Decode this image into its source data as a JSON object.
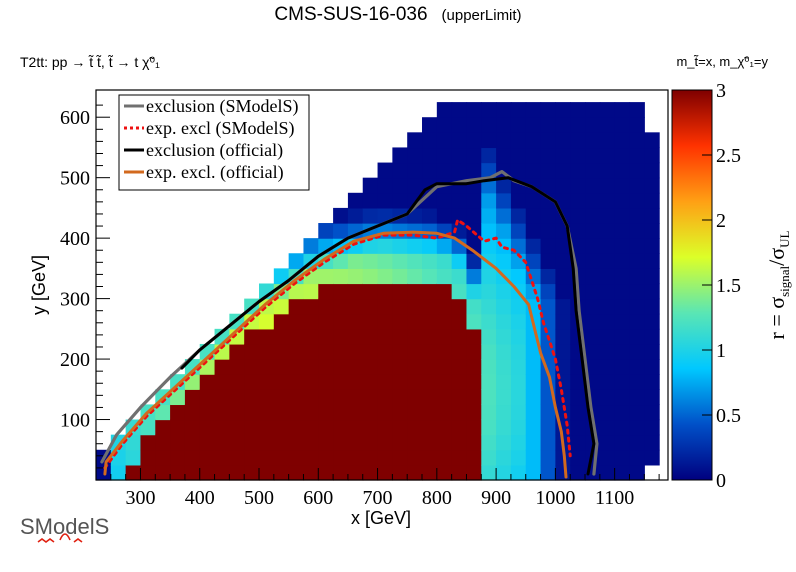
{
  "header": {
    "title": "CMS-SUS-16-036",
    "subtitle": "(upperLimit)",
    "process_label": "T2tt: pp → t̃ t̃, t̃ → t χ̃⁰₁",
    "axes_note": "m_t̃=x, m_χ̃⁰₁=y"
  },
  "logo": {
    "text": "SModelS"
  },
  "chart_data": {
    "type": "heatmap",
    "title": "CMS-SUS-16-036 (upperLimit)",
    "xlabel": "x [GeV]",
    "ylabel": "y [GeV]",
    "zlabel": "r = σsignal/σUL",
    "xlim": [
      225,
      1190
    ],
    "ylim": [
      0,
      645
    ],
    "zlim": [
      0,
      3
    ],
    "x_ticks": [
      300,
      400,
      500,
      600,
      700,
      800,
      900,
      1000,
      1100
    ],
    "y_ticks": [
      100,
      200,
      300,
      400,
      500,
      600
    ],
    "z_ticks": [
      0,
      0.5,
      1,
      1.5,
      2,
      2.5,
      3
    ],
    "z_tick_labels": [
      "0",
      "0.5",
      "1",
      "1.5",
      "2",
      "2.5",
      "3"
    ],
    "bin_width_x": 25,
    "bin_width_y": 25,
    "grid": false,
    "colormap": [
      "#00007f",
      "#0050c8",
      "#00c8ff",
      "#5ae6b4",
      "#dcff28",
      "#ffa014",
      "#ff3200",
      "#7f0000"
    ],
    "legend": {
      "placement": "top-left",
      "entries": [
        {
          "label": "exclusion (SModelS)",
          "color": "#707070",
          "style": "solid"
        },
        {
          "label": "exp. excl (SModelS)",
          "color": "#ee1111",
          "style": "dotted"
        },
        {
          "label": "exclusion (official)",
          "color": "#000000",
          "style": "solid"
        },
        {
          "label": "exp. excl. (official)",
          "color": "#d2691e",
          "style": "solid"
        }
      ]
    },
    "series": [
      {
        "name": "exclusion (SModelS)",
        "points": [
          [
            235,
            30
          ],
          [
            260,
            75
          ],
          [
            300,
            120
          ],
          [
            350,
            170
          ],
          [
            400,
            215
          ],
          [
            450,
            255
          ],
          [
            500,
            295
          ],
          [
            550,
            330
          ],
          [
            600,
            370
          ],
          [
            650,
            400
          ],
          [
            700,
            420
          ],
          [
            750,
            440
          ],
          [
            800,
            485
          ],
          [
            850,
            495
          ],
          [
            890,
            500
          ],
          [
            910,
            510
          ],
          [
            930,
            495
          ],
          [
            960,
            485
          ],
          [
            1000,
            460
          ],
          [
            1020,
            420
          ],
          [
            1035,
            350
          ],
          [
            1040,
            280
          ],
          [
            1050,
            200
          ],
          [
            1060,
            120
          ],
          [
            1070,
            60
          ],
          [
            1065,
            10
          ]
        ]
      },
      {
        "name": "exp. excl (SModelS)",
        "points": [
          [
            240,
            20
          ],
          [
            270,
            60
          ],
          [
            310,
            105
          ],
          [
            360,
            150
          ],
          [
            410,
            195
          ],
          [
            460,
            240
          ],
          [
            510,
            285
          ],
          [
            560,
            325
          ],
          [
            610,
            360
          ],
          [
            660,
            390
          ],
          [
            710,
            405
          ],
          [
            760,
            405
          ],
          [
            800,
            400
          ],
          [
            830,
            410
          ],
          [
            835,
            430
          ],
          [
            850,
            420
          ],
          [
            880,
            395
          ],
          [
            900,
            400
          ],
          [
            910,
            385
          ],
          [
            930,
            380
          ],
          [
            950,
            360
          ],
          [
            960,
            330
          ],
          [
            970,
            300
          ],
          [
            980,
            260
          ],
          [
            990,
            230
          ],
          [
            1000,
            200
          ],
          [
            1010,
            150
          ],
          [
            1020,
            90
          ],
          [
            1025,
            40
          ]
        ]
      },
      {
        "name": "exclusion (official)",
        "points": [
          [
            370,
            185
          ],
          [
            380,
            195
          ],
          [
            400,
            215
          ],
          [
            450,
            255
          ],
          [
            500,
            295
          ],
          [
            550,
            330
          ],
          [
            600,
            370
          ],
          [
            650,
            400
          ],
          [
            700,
            420
          ],
          [
            750,
            440
          ],
          [
            780,
            480
          ],
          [
            800,
            490
          ],
          [
            850,
            490
          ],
          [
            880,
            495
          ],
          [
            920,
            500
          ],
          [
            960,
            485
          ],
          [
            1000,
            460
          ],
          [
            1020,
            420
          ],
          [
            1030,
            350
          ],
          [
            1035,
            280
          ],
          [
            1045,
            200
          ],
          [
            1055,
            120
          ],
          [
            1065,
            60
          ],
          [
            1055,
            10
          ]
        ]
      },
      {
        "name": "exp. excl. (official)",
        "points": [
          [
            240,
            10
          ],
          [
            242,
            30
          ],
          [
            270,
            65
          ],
          [
            310,
            110
          ],
          [
            360,
            155
          ],
          [
            410,
            200
          ],
          [
            460,
            245
          ],
          [
            510,
            290
          ],
          [
            560,
            330
          ],
          [
            610,
            365
          ],
          [
            660,
            395
          ],
          [
            710,
            408
          ],
          [
            760,
            410
          ],
          [
            800,
            408
          ],
          [
            830,
            400
          ],
          [
            860,
            380
          ],
          [
            900,
            350
          ],
          [
            930,
            320
          ],
          [
            955,
            290
          ],
          [
            965,
            250
          ],
          [
            975,
            210
          ],
          [
            990,
            170
          ],
          [
            1000,
            120
          ],
          [
            1010,
            80
          ],
          [
            1015,
            40
          ],
          [
            1018,
            5
          ]
        ]
      }
    ],
    "heatmap_model": {
      "description": "r(x,y) grid, 25 GeV bins, region y < x - 175 (and below upper cap); value saturates at 3 deep inside",
      "saturated_region_boundary": [
        [
          260,
          0
        ],
        [
          300,
          50
        ],
        [
          400,
          150
        ],
        [
          500,
          250
        ],
        [
          600,
          310
        ],
        [
          700,
          330
        ],
        [
          800,
          320
        ],
        [
          850,
          290
        ],
        [
          880,
          200
        ],
        [
          890,
          100
        ],
        [
          890,
          0
        ]
      ]
    }
  }
}
